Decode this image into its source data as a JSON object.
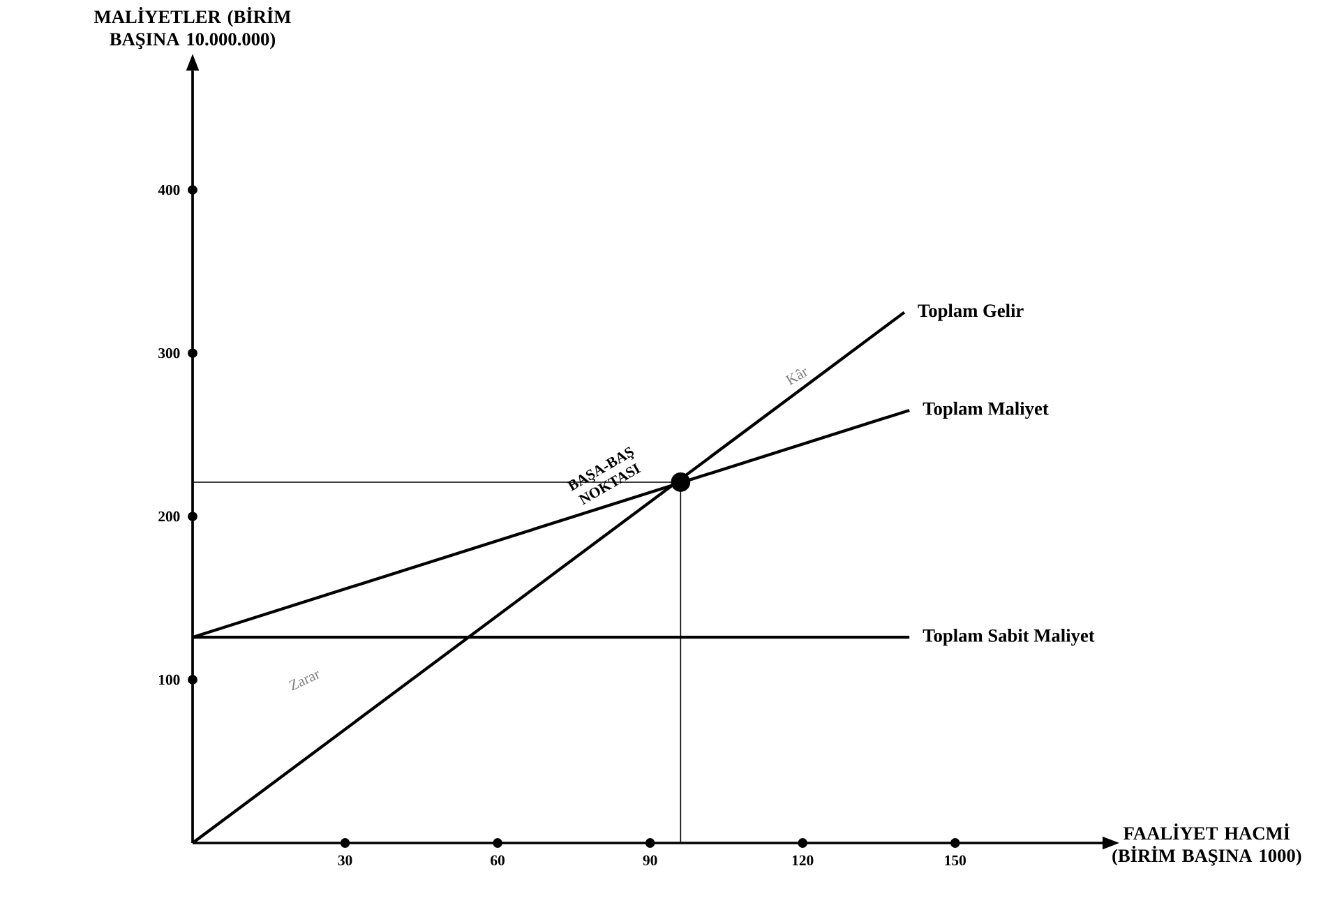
{
  "chart_data": {
    "type": "line",
    "xlabel": "FAALİYET HACMİ (BİRİM BAŞINA 1000)",
    "ylabel": "MALİYETLER (BİRİM BAŞINA 10.000.000)",
    "xlim": [
      0,
      179
    ],
    "ylim": [
      0,
      473
    ],
    "xticks": [
      30,
      60,
      90,
      120,
      150
    ],
    "yticks": [
      100,
      200,
      300,
      400
    ],
    "series": [
      {
        "name": "Toplam Gelir",
        "color": "#000000",
        "x": [
          0,
          140
        ],
        "values": [
          0,
          325
        ]
      },
      {
        "name": "Toplam Maliyet",
        "color": "#000000",
        "x": [
          0,
          141
        ],
        "values": [
          126,
          265
        ]
      },
      {
        "name": "Toplam Sabit Maliyet",
        "color": "#000000",
        "x": [
          0,
          141
        ],
        "values": [
          126,
          126
        ]
      },
      {
        "color": "#000000",
        "x": [
          0,
          96,
          96
        ],
        "values": [
          221,
          221,
          0
        ]
      },
      {
        "type": "scatter",
        "color": "#000000",
        "marker": "circle",
        "x": [
          96
        ],
        "values": [
          221
        ]
      }
    ],
    "annotations": [
      {
        "text": "BAŞA-BAŞ NOKTASI",
        "x": 96,
        "y": 221
      },
      {
        "text": "Kâr",
        "x": 120,
        "y": 280
      },
      "Zarar"
    ]
  }
}
